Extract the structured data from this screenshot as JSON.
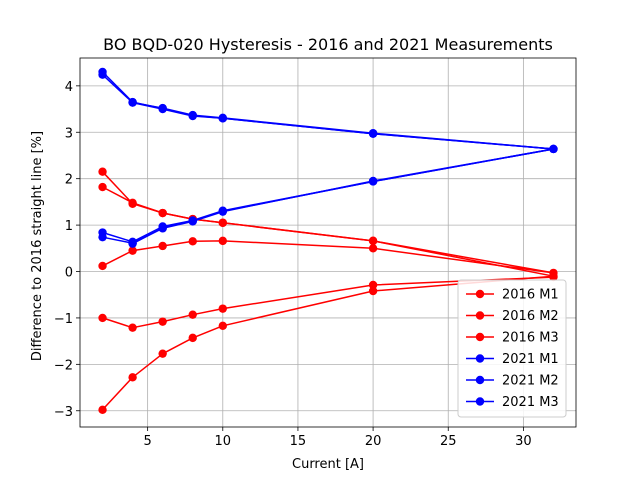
{
  "chart_data": {
    "type": "line",
    "title": "BO BQD-020 Hysteresis - 2016 and 2021 Measurements",
    "xlabel": "Current [A]",
    "ylabel": "Difference to 2016 straight line [%]",
    "xlim": [
      0.5,
      33.5
    ],
    "ylim": [
      -3.35,
      4.6
    ],
    "xticks": [
      5,
      10,
      15,
      20,
      25,
      30
    ],
    "yticks": [
      -3,
      -2,
      -1,
      0,
      1,
      2,
      3,
      4
    ],
    "grid": true,
    "legend_position": "lower-right",
    "colors": {
      "2016": "#ff0000",
      "2021": "#0000ff"
    },
    "series": [
      {
        "name": "2016 M1",
        "color": "#ff0000",
        "x": [
          2,
          4,
          6,
          8,
          10,
          20,
          32,
          20,
          10,
          8,
          6,
          4,
          2
        ],
        "y": [
          0.12,
          0.45,
          0.55,
          0.65,
          0.66,
          0.5,
          -0.03,
          0.66,
          1.05,
          1.13,
          1.26,
          1.48,
          1.82
        ]
      },
      {
        "name": "2016 M2",
        "color": "#ff0000",
        "x": [
          2,
          4,
          6,
          8,
          10,
          20,
          32,
          20,
          10,
          8,
          6,
          4,
          2
        ],
        "y": [
          2.15,
          1.46,
          1.26,
          1.13,
          1.05,
          0.66,
          -0.1,
          -0.42,
          -1.17,
          -1.43,
          -1.77,
          -2.28,
          -2.98
        ]
      },
      {
        "name": "2016 M3",
        "color": "#ff0000",
        "x": [
          2,
          4,
          6,
          8,
          10,
          20,
          32
        ],
        "y": [
          -1.0,
          -1.21,
          -1.08,
          -0.93,
          -0.8,
          -0.29,
          -0.12
        ]
      },
      {
        "name": "2021 M1",
        "color": "#0000ff",
        "x": [
          2,
          4,
          6,
          8,
          10,
          20,
          32,
          20,
          10,
          8,
          6,
          4,
          2
        ],
        "y": [
          0.84,
          0.64,
          0.97,
          1.1,
          1.31,
          1.94,
          2.64,
          2.97,
          3.3,
          3.36,
          3.51,
          3.65,
          4.3
        ]
      },
      {
        "name": "2021 M2",
        "color": "#0000ff",
        "x": [
          2,
          4,
          6,
          8,
          10,
          20,
          32,
          20,
          10,
          8,
          6,
          4,
          2
        ],
        "y": [
          0.74,
          0.61,
          0.93,
          1.08,
          1.29,
          1.95,
          2.64,
          2.98,
          3.31,
          3.37,
          3.52,
          3.64,
          4.24
        ]
      },
      {
        "name": "2021 M3",
        "color": "#0000ff",
        "x": [
          4,
          6,
          8,
          10,
          20,
          32,
          20,
          10,
          8,
          6,
          4
        ],
        "y": [
          0.6,
          0.94,
          1.09,
          1.3,
          1.94,
          2.64,
          2.97,
          3.3,
          3.35,
          3.5,
          3.64
        ]
      }
    ]
  }
}
